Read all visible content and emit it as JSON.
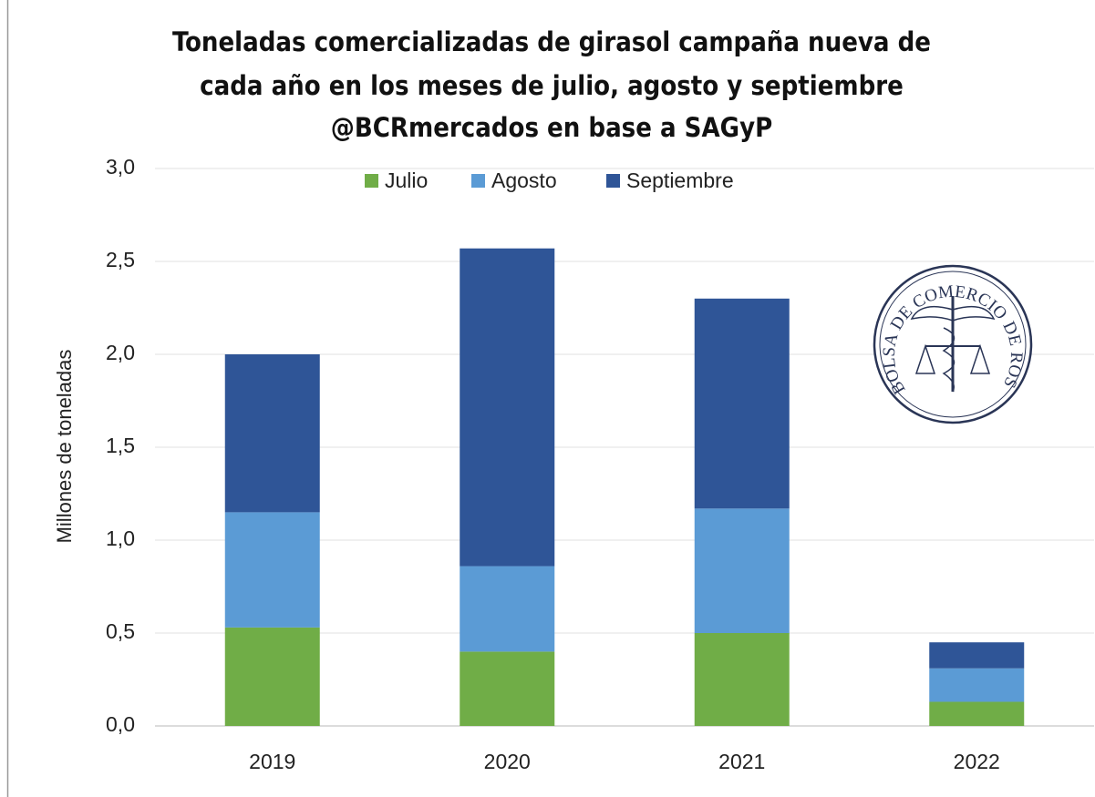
{
  "chart_data": {
    "type": "stacked_bar",
    "title": [
      "Toneladas comercializadas de girasol campaña nueva de",
      "cada año en los meses de julio, agosto  y septiembre",
      "@BCRmercados en base a SAGyP"
    ],
    "y_label": "Millones de toneladas",
    "categories": [
      "2019",
      "2020",
      "2021",
      "2022"
    ],
    "series": [
      {
        "name": "Julio",
        "color": "#70ad47",
        "values": [
          0.53,
          0.4,
          0.5,
          0.13
        ]
      },
      {
        "name": "Agosto",
        "color": "#5b9bd5",
        "values": [
          0.62,
          0.46,
          0.67,
          0.18
        ]
      },
      {
        "name": "Septiembre",
        "color": "#2f5597",
        "values": [
          0.85,
          1.71,
          1.13,
          0.14
        ]
      }
    ],
    "ylim": [
      0,
      3
    ],
    "yticks": [
      {
        "value": 0,
        "label": "0,0"
      },
      {
        "value": 0.5,
        "label": "0,5"
      },
      {
        "value": 1,
        "label": "1,0"
      },
      {
        "value": 1.5,
        "label": "1,5"
      },
      {
        "value": 2,
        "label": "2,0"
      },
      {
        "value": 2.5,
        "label": "2,5"
      },
      {
        "value": 3,
        "label": "3,0"
      }
    ],
    "grid": true,
    "legend": "top"
  },
  "logo": {
    "text": "BOLSA DE COMERCIO DE ROSARIO"
  }
}
